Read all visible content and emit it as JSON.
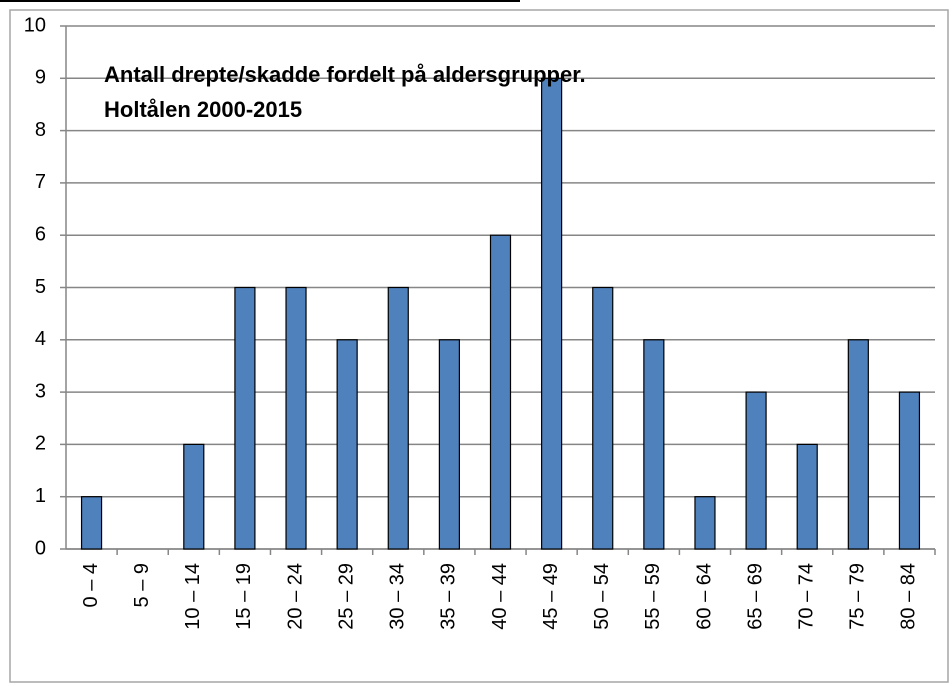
{
  "chart_data": {
    "type": "bar",
    "title": [
      "Antall drepte/skadde fordelt på aldersgrupper.",
      "Holtålen 2000-2015"
    ],
    "categories": [
      "0 – 4",
      "5 – 9",
      "10 – 14",
      "15 – 19",
      "20 – 24",
      "25 – 29",
      "30 – 34",
      "35 – 39",
      "40 – 44",
      "45 – 49",
      "50 – 54",
      "55 – 59",
      "60 – 64",
      "65 – 69",
      "70 – 74",
      "75 – 79",
      "80 – 84"
    ],
    "values": [
      1,
      0,
      2,
      5,
      5,
      4,
      5,
      4,
      6,
      9,
      5,
      4,
      1,
      3,
      2,
      4,
      3
    ],
    "color": "#4f81bd",
    "ylim": [
      0,
      10
    ],
    "yticks": [
      0,
      1,
      2,
      3,
      4,
      5,
      6,
      7,
      8,
      9,
      10
    ],
    "grid": true
  }
}
